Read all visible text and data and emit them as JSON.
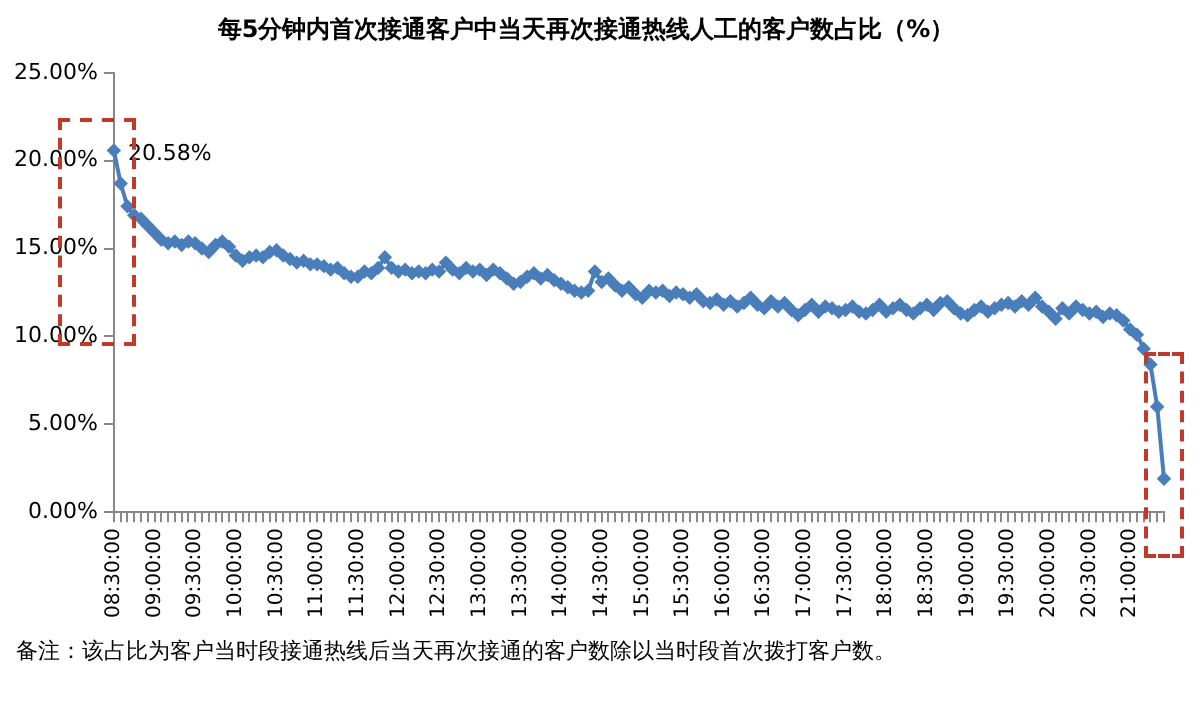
{
  "chart_data": {
    "type": "line",
    "title": "每5分钟内首次接通客户中当天再次接通热线人工的客户数占比（%）",
    "categories": [
      "08:30:00",
      null,
      null,
      null,
      null,
      null,
      "09:00:00",
      null,
      null,
      null,
      null,
      null,
      "09:30:00",
      null,
      null,
      null,
      null,
      null,
      "10:00:00",
      null,
      null,
      null,
      null,
      null,
      "10:30:00",
      null,
      null,
      null,
      null,
      null,
      "11:00:00",
      null,
      null,
      null,
      null,
      null,
      "11:30:00",
      null,
      null,
      null,
      null,
      null,
      "12:00:00",
      null,
      null,
      null,
      null,
      null,
      "12:30:00",
      null,
      null,
      null,
      null,
      null,
      "13:00:00",
      null,
      null,
      null,
      null,
      null,
      "13:30:00",
      null,
      null,
      null,
      null,
      null,
      "14:00:00",
      null,
      null,
      null,
      null,
      null,
      "14:30:00",
      null,
      null,
      null,
      null,
      null,
      "15:00:00",
      null,
      null,
      null,
      null,
      null,
      "15:30:00",
      null,
      null,
      null,
      null,
      null,
      "16:00:00",
      null,
      null,
      null,
      null,
      null,
      "16:30:00",
      null,
      null,
      null,
      null,
      null,
      "17:00:00",
      null,
      null,
      null,
      null,
      null,
      "17:30:00",
      null,
      null,
      null,
      null,
      null,
      "18:00:00",
      null,
      null,
      null,
      null,
      null,
      "18:30:00",
      null,
      null,
      null,
      null,
      null,
      "19:00:00",
      null,
      null,
      null,
      null,
      null,
      "19:30:00",
      null,
      null,
      null,
      null,
      null,
      "20:00:00",
      null,
      null,
      null,
      null,
      null,
      "20:30:00",
      null,
      null,
      null,
      null,
      null,
      "21:00:00",
      null,
      null,
      null,
      null,
      null
    ],
    "series": [
      {
        "color": "#4a7ebb",
        "values": [
          20.58,
          18.7,
          17.4,
          16.9,
          16.7,
          16.3,
          15.9,
          15.5,
          15.3,
          15.4,
          15.2,
          15.4,
          15.3,
          15.0,
          14.8,
          15.2,
          15.4,
          15.1,
          14.6,
          14.3,
          14.5,
          14.6,
          14.5,
          14.8,
          14.9,
          14.6,
          14.4,
          14.2,
          14.3,
          14.1,
          14.1,
          14.0,
          13.8,
          13.9,
          13.6,
          13.4,
          13.4,
          13.7,
          13.6,
          13.9,
          14.5,
          13.9,
          13.7,
          13.8,
          13.6,
          13.7,
          13.6,
          13.8,
          13.7,
          14.2,
          13.8,
          13.6,
          13.9,
          13.7,
          13.8,
          13.5,
          13.8,
          13.6,
          13.3,
          13.0,
          13.1,
          13.4,
          13.6,
          13.3,
          13.5,
          13.2,
          13.0,
          12.8,
          12.6,
          12.5,
          12.6,
          13.7,
          13.1,
          13.3,
          12.9,
          12.6,
          12.8,
          12.4,
          12.2,
          12.6,
          12.5,
          12.6,
          12.3,
          12.5,
          12.4,
          12.2,
          12.4,
          12.0,
          11.9,
          12.1,
          11.8,
          12.0,
          11.7,
          11.9,
          12.2,
          11.8,
          11.6,
          12.0,
          11.7,
          11.9,
          11.5,
          11.2,
          11.5,
          11.8,
          11.4,
          11.7,
          11.6,
          11.4,
          11.5,
          11.7,
          11.4,
          11.3,
          11.5,
          11.8,
          11.4,
          11.6,
          11.8,
          11.5,
          11.3,
          11.6,
          11.8,
          11.5,
          11.9,
          12.0,
          11.6,
          11.3,
          11.2,
          11.5,
          11.7,
          11.4,
          11.6,
          11.8,
          11.9,
          11.7,
          12.0,
          11.8,
          12.2,
          11.7,
          11.4,
          11.0,
          11.6,
          11.3,
          11.7,
          11.5,
          11.3,
          11.4,
          11.1,
          11.3,
          11.2,
          10.9,
          10.4,
          10.1,
          9.3,
          8.4,
          6.0,
          1.9
        ],
        "value_labels": [
          "20.58%",
          null,
          null,
          null,
          null,
          null,
          null,
          null,
          null,
          null,
          null,
          null,
          null,
          null,
          null,
          null,
          null,
          null,
          null,
          null,
          null,
          null,
          null,
          null,
          null,
          null,
          null,
          null,
          null,
          null,
          null,
          null,
          null,
          null,
          null,
          null,
          null,
          null,
          null,
          null,
          null,
          null,
          null,
          null,
          null,
          null,
          null,
          null,
          null,
          null,
          null,
          null,
          null,
          null,
          null,
          null,
          null,
          null,
          null,
          null,
          null,
          null,
          null,
          null,
          null,
          null,
          null,
          null,
          null,
          null,
          null,
          null,
          null,
          null,
          null,
          null,
          null,
          null,
          null,
          null,
          null,
          null,
          null,
          null,
          null,
          null,
          null,
          null,
          null,
          null,
          null,
          null,
          null,
          null,
          null,
          null,
          null,
          null,
          null,
          null,
          null,
          null,
          null,
          null,
          null,
          null,
          null,
          null,
          null,
          null,
          null,
          null,
          null,
          null,
          null,
          null,
          null,
          null,
          null,
          null,
          null,
          null,
          null,
          null,
          null,
          null,
          null,
          null,
          null,
          null,
          null,
          null,
          null,
          null,
          null,
          null,
          null,
          null,
          null,
          null,
          null,
          null,
          null,
          null,
          null,
          null,
          null,
          null,
          null,
          null,
          null,
          null,
          null,
          null,
          null,
          null
        ]
      }
    ],
    "ylim": [
      0,
      25
    ],
    "yticks": [
      {
        "value": 0,
        "label": "0.00%"
      },
      {
        "value": 5,
        "label": "5.00%"
      },
      {
        "value": 10,
        "label": "10.00%"
      },
      {
        "value": 15,
        "label": "15.00%"
      },
      {
        "value": 20,
        "label": "20.00%"
      },
      {
        "value": 25,
        "label": "25.00%"
      }
    ],
    "grid": false,
    "legend": false,
    "marker": "diamond",
    "line_style": "solid",
    "annotations": [
      "备注：该占比为客户当时段接通热线后当天再次接通的客户数除以当时段首次拨打客户数。"
    ]
  }
}
